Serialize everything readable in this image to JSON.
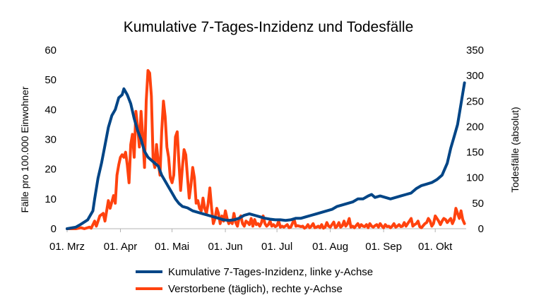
{
  "chart_data": {
    "type": "line",
    "title": "Kumulative 7-Tages-Inzidenz und Todesfälle",
    "ylabel_left": "Fälle pro 100.000 Einwohner",
    "ylabel_right": "Todesfälle (absolut)",
    "ylim_left": [
      0,
      60
    ],
    "ylim_right": [
      0,
      350
    ],
    "yticks_left": [
      "0",
      "10",
      "20",
      "30",
      "40",
      "50",
      "60"
    ],
    "yticks_right": [
      "0",
      "50",
      "100",
      "150",
      "200",
      "250",
      "300",
      "350"
    ],
    "x_range": [
      0,
      232
    ],
    "xticks": [
      {
        "label": "01. Mrz",
        "day": 0
      },
      {
        "label": "01. Apr",
        "day": 31
      },
      {
        "label": "01. Mai",
        "day": 61
      },
      {
        "label": "01. Jun",
        "day": 92
      },
      {
        "label": "01. Jul",
        "day": 122
      },
      {
        "label": "01. Aug",
        "day": 153
      },
      {
        "label": "01. Sep",
        "day": 184
      },
      {
        "label": "01. Okt",
        "day": 214
      }
    ],
    "grid": false,
    "legend_position": "bottom",
    "series": [
      {
        "name": "Kumulative 7-Tages-Inzidenz, linke y-Achse",
        "axis": "left",
        "color": "#004586",
        "points": [
          [
            0,
            0
          ],
          [
            5,
            0.5
          ],
          [
            8,
            1.5
          ],
          [
            12,
            3
          ],
          [
            15,
            6
          ],
          [
            16,
            10
          ],
          [
            18,
            17
          ],
          [
            20,
            22
          ],
          [
            22,
            28
          ],
          [
            24,
            34
          ],
          [
            26,
            38
          ],
          [
            28,
            40
          ],
          [
            30,
            44
          ],
          [
            32,
            45
          ],
          [
            33,
            47
          ],
          [
            35,
            45
          ],
          [
            37,
            42
          ],
          [
            39,
            37
          ],
          [
            41,
            33
          ],
          [
            43,
            30
          ],
          [
            45,
            26
          ],
          [
            47,
            24
          ],
          [
            49,
            23
          ],
          [
            51,
            22
          ],
          [
            53,
            21
          ],
          [
            55,
            18
          ],
          [
            57,
            16
          ],
          [
            59,
            14
          ],
          [
            61,
            12
          ],
          [
            63,
            10
          ],
          [
            65,
            8.5
          ],
          [
            67,
            7.5
          ],
          [
            70,
            7
          ],
          [
            73,
            6
          ],
          [
            76,
            5.5
          ],
          [
            79,
            5
          ],
          [
            82,
            4.5
          ],
          [
            85,
            4
          ],
          [
            88,
            3.5
          ],
          [
            91,
            3
          ],
          [
            94,
            2.8
          ],
          [
            97,
            3
          ],
          [
            100,
            3.5
          ],
          [
            103,
            4.5
          ],
          [
            106,
            5
          ],
          [
            109,
            4.5
          ],
          [
            112,
            4
          ],
          [
            115,
            3.5
          ],
          [
            118,
            3.2
          ],
          [
            121,
            3
          ],
          [
            124,
            3
          ],
          [
            127,
            2.8
          ],
          [
            130,
            3
          ],
          [
            133,
            3.5
          ],
          [
            136,
            3.5
          ],
          [
            139,
            4
          ],
          [
            142,
            4.5
          ],
          [
            145,
            5
          ],
          [
            148,
            5.5
          ],
          [
            151,
            6
          ],
          [
            154,
            6.5
          ],
          [
            157,
            7.5
          ],
          [
            160,
            8
          ],
          [
            163,
            8.5
          ],
          [
            166,
            9
          ],
          [
            169,
            10
          ],
          [
            172,
            10
          ],
          [
            175,
            11
          ],
          [
            177,
            11.5
          ],
          [
            179,
            10.5
          ],
          [
            182,
            11
          ],
          [
            185,
            10.5
          ],
          [
            188,
            10
          ],
          [
            191,
            10.5
          ],
          [
            194,
            11
          ],
          [
            197,
            11.5
          ],
          [
            200,
            12
          ],
          [
            203,
            13.5
          ],
          [
            206,
            14.5
          ],
          [
            209,
            15
          ],
          [
            212,
            15.5
          ],
          [
            215,
            16.5
          ],
          [
            218,
            18
          ],
          [
            221,
            22
          ],
          [
            223,
            27
          ],
          [
            225,
            31
          ],
          [
            227,
            35
          ],
          [
            229,
            42
          ],
          [
            231,
            49
          ]
        ]
      },
      {
        "name": "Verstorbene (täglich), rechte y-Achse",
        "axis": "right",
        "color": "#ff420e",
        "points": [
          [
            0,
            0
          ],
          [
            5,
            0
          ],
          [
            8,
            2
          ],
          [
            10,
            0
          ],
          [
            13,
            3
          ],
          [
            14,
            1
          ],
          [
            16,
            15
          ],
          [
            17,
            5
          ],
          [
            19,
            25
          ],
          [
            21,
            30
          ],
          [
            22,
            15
          ],
          [
            24,
            55
          ],
          [
            25,
            40
          ],
          [
            27,
            65
          ],
          [
            28,
            50
          ],
          [
            29,
            105
          ],
          [
            30,
            125
          ],
          [
            31,
            140
          ],
          [
            32,
            145
          ],
          [
            33,
            140
          ],
          [
            34,
            150
          ],
          [
            35,
            125
          ],
          [
            36,
            90
          ],
          [
            37,
            165
          ],
          [
            38,
            185
          ],
          [
            39,
            140
          ],
          [
            40,
            230
          ],
          [
            41,
            200
          ],
          [
            42,
            160
          ],
          [
            43,
            230
          ],
          [
            44,
            180
          ],
          [
            45,
            120
          ],
          [
            46,
            250
          ],
          [
            47,
            310
          ],
          [
            48,
            305
          ],
          [
            49,
            260
          ],
          [
            50,
            135
          ],
          [
            51,
            120
          ],
          [
            52,
            165
          ],
          [
            53,
            130
          ],
          [
            54,
            105
          ],
          [
            55,
            190
          ],
          [
            56,
            250
          ],
          [
            57,
            220
          ],
          [
            58,
            160
          ],
          [
            59,
            140
          ],
          [
            60,
            100
          ],
          [
            61,
            90
          ],
          [
            62,
            105
          ],
          [
            63,
            180
          ],
          [
            64,
            190
          ],
          [
            65,
            130
          ],
          [
            66,
            75
          ],
          [
            67,
            120
          ],
          [
            68,
            155
          ],
          [
            69,
            145
          ],
          [
            70,
            100
          ],
          [
            71,
            60
          ],
          [
            72,
            85
          ],
          [
            73,
            120
          ],
          [
            74,
            100
          ],
          [
            75,
            50
          ],
          [
            76,
            55
          ],
          [
            77,
            40
          ],
          [
            78,
            35
          ],
          [
            79,
            60
          ],
          [
            80,
            40
          ],
          [
            81,
            30
          ],
          [
            82,
            50
          ],
          [
            83,
            80
          ],
          [
            84,
            40
          ],
          [
            85,
            10
          ],
          [
            86,
            20
          ],
          [
            87,
            40
          ],
          [
            88,
            30
          ],
          [
            89,
            10
          ],
          [
            90,
            25
          ],
          [
            91,
            15
          ],
          [
            92,
            35
          ],
          [
            93,
            20
          ],
          [
            94,
            10
          ],
          [
            95,
            15
          ],
          [
            96,
            10
          ],
          [
            97,
            30
          ],
          [
            98,
            12
          ],
          [
            99,
            5
          ],
          [
            100,
            20
          ],
          [
            101,
            25
          ],
          [
            102,
            10
          ],
          [
            103,
            5
          ],
          [
            104,
            15
          ],
          [
            105,
            12
          ],
          [
            106,
            8
          ],
          [
            107,
            20
          ],
          [
            108,
            5
          ],
          [
            109,
            18
          ],
          [
            110,
            8
          ],
          [
            111,
            10
          ],
          [
            112,
            5
          ],
          [
            113,
            12
          ],
          [
            114,
            25
          ],
          [
            115,
            10
          ],
          [
            116,
            5
          ],
          [
            117,
            8
          ],
          [
            118,
            15
          ],
          [
            119,
            5
          ],
          [
            120,
            8
          ],
          [
            121,
            4
          ],
          [
            122,
            6
          ],
          [
            123,
            15
          ],
          [
            124,
            3
          ],
          [
            125,
            5
          ],
          [
            126,
            3
          ],
          [
            128,
            8
          ],
          [
            129,
            2
          ],
          [
            130,
            3
          ],
          [
            132,
            18
          ],
          [
            133,
            5
          ],
          [
            134,
            6
          ],
          [
            136,
            4
          ],
          [
            137,
            5
          ],
          [
            138,
            1
          ],
          [
            139,
            3
          ],
          [
            140,
            8
          ],
          [
            141,
            2
          ],
          [
            142,
            5
          ],
          [
            143,
            10
          ],
          [
            144,
            2
          ],
          [
            145,
            3
          ],
          [
            146,
            5
          ],
          [
            147,
            2
          ],
          [
            148,
            8
          ],
          [
            149,
            1
          ],
          [
            150,
            3
          ],
          [
            151,
            12
          ],
          [
            152,
            5
          ],
          [
            153,
            3
          ],
          [
            154,
            8
          ],
          [
            155,
            13
          ],
          [
            156,
            2
          ],
          [
            157,
            5
          ],
          [
            158,
            12
          ],
          [
            159,
            3
          ],
          [
            160,
            6
          ],
          [
            161,
            15
          ],
          [
            162,
            5
          ],
          [
            163,
            10
          ],
          [
            164,
            20
          ],
          [
            165,
            3
          ],
          [
            166,
            5
          ],
          [
            167,
            2
          ],
          [
            168,
            6
          ],
          [
            169,
            10
          ],
          [
            170,
            3
          ],
          [
            171,
            8
          ],
          [
            172,
            5
          ],
          [
            173,
            4
          ],
          [
            174,
            8
          ],
          [
            175,
            2
          ],
          [
            176,
            10
          ],
          [
            177,
            5
          ],
          [
            178,
            3
          ],
          [
            179,
            6
          ],
          [
            180,
            8
          ],
          [
            181,
            3
          ],
          [
            182,
            10
          ],
          [
            183,
            5
          ],
          [
            184,
            2
          ],
          [
            185,
            8
          ],
          [
            186,
            4
          ],
          [
            187,
            5
          ],
          [
            188,
            2
          ],
          [
            189,
            5
          ],
          [
            190,
            10
          ],
          [
            191,
            3
          ],
          [
            192,
            5
          ],
          [
            193,
            8
          ],
          [
            194,
            4
          ],
          [
            195,
            5
          ],
          [
            196,
            12
          ],
          [
            197,
            5
          ],
          [
            198,
            10
          ],
          [
            199,
            15
          ],
          [
            200,
            20
          ],
          [
            201,
            5
          ],
          [
            202,
            8
          ],
          [
            203,
            10
          ],
          [
            204,
            15
          ],
          [
            205,
            4
          ],
          [
            206,
            2
          ],
          [
            207,
            6
          ],
          [
            208,
            10
          ],
          [
            209,
            12
          ],
          [
            210,
            20
          ],
          [
            211,
            15
          ],
          [
            212,
            5
          ],
          [
            213,
            10
          ],
          [
            214,
            25
          ],
          [
            215,
            20
          ],
          [
            216,
            15
          ],
          [
            217,
            8
          ],
          [
            218,
            15
          ],
          [
            219,
            20
          ],
          [
            220,
            18
          ],
          [
            221,
            12
          ],
          [
            222,
            16
          ],
          [
            223,
            20
          ],
          [
            224,
            10
          ],
          [
            225,
            18
          ],
          [
            226,
            40
          ],
          [
            227,
            30
          ],
          [
            228,
            20
          ],
          [
            229,
            35
          ],
          [
            230,
            18
          ],
          [
            231,
            10
          ]
        ]
      }
    ]
  }
}
